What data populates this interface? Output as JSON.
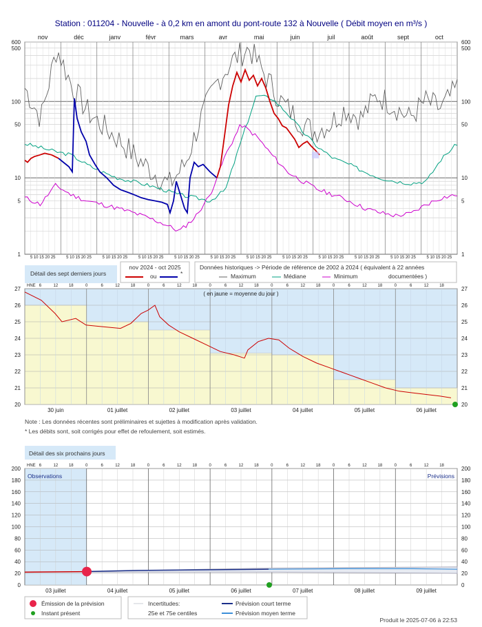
{
  "title": "Station : 011204      -   Nouvelle - à 0,2 km en amont du pont-route 132 à Nouvelle   ( Débit moyen en m³/s )",
  "colors": {
    "current": "#cc0000",
    "estimated": "#0000aa",
    "maximum": "#606060",
    "mediane": "#00a080",
    "minimum": "#cc00cc",
    "bg_blue": "#d6e9f8",
    "bg_yellow": "#f8f8d0"
  },
  "annual": {
    "months": [
      "nov",
      "déc",
      "janv",
      "févr",
      "mars",
      "avr",
      "mai",
      "juin",
      "juil",
      "août",
      "sept",
      "oct"
    ],
    "yticks": [
      "600",
      "500",
      "100",
      "50",
      "10",
      "5",
      "1"
    ],
    "day_ticks": "5 10 15 20 25"
  },
  "legend": {
    "detail_7": "Détail des sept derniers jours",
    "period": "nov 2024 - oct 2025",
    "ou": "ou",
    "star": "*",
    "hist": "Données historiques -> Période de référence  de 2002 à 2024   ( équivalent à 22 années",
    "maximum": "Maximum",
    "mediane": "Médiane",
    "minimum": "Minimum",
    "documented": "documentées )"
  },
  "week": {
    "hne": "HNE",
    "hours": [
      "6",
      "12",
      "18",
      "0",
      "6",
      "12",
      "18",
      "0",
      "6",
      "12",
      "18",
      "0",
      "6",
      "12",
      "18",
      "0",
      "6",
      "12",
      "18",
      "0",
      "6",
      "12",
      "18",
      "0",
      "6",
      "12",
      "18"
    ],
    "yticks": [
      "27",
      "26",
      "25",
      "24",
      "23",
      "22",
      "21",
      "20"
    ],
    "days": [
      "30 juin",
      "01 juillet",
      "02 juillet",
      "03 juillet",
      "04 juillet",
      "05 juillet",
      "06 juillet"
    ],
    "note_mean": "( en jaune = moyenne du jour )",
    "note1": "Note : Les données récentes sont préliminaires et sujettes à modification après validation.",
    "note2": "* Les débits sont, soit corrigés pour effet de refoulement, soit estimés."
  },
  "forecast": {
    "label": "Détail des six prochains jours",
    "hne": "HNE",
    "hours": [
      "6",
      "12",
      "18",
      "0",
      "6",
      "12",
      "18",
      "0",
      "6",
      "12",
      "18",
      "0",
      "6",
      "12",
      "18",
      "0",
      "6",
      "12",
      "18",
      "0",
      "6",
      "12",
      "18",
      "0",
      "6",
      "12",
      "18"
    ],
    "yticks": [
      "200",
      "180",
      "160",
      "140",
      "120",
      "100",
      "80",
      "60",
      "40",
      "20",
      "0"
    ],
    "days": [
      "03 juillet",
      "04 juillet",
      "05 juillet",
      "06 juillet",
      "07 juillet",
      "08 juillet",
      "09 juillet"
    ],
    "observations": "Observations",
    "previsions": "Prévisions",
    "legend_emission": "Émission de la prévision",
    "legend_present": "Instant présent",
    "legend_incert": "Incertitudes:",
    "legend_centiles": "25e et 75e centiles",
    "legend_court": "Prévision court terme",
    "legend_moyen": "Prévision moyen terme"
  },
  "footer": "Produit le 2025-07-06 à 22:53",
  "chart_data": [
    {
      "type": "line",
      "title": "Station : 011204 - Nouvelle - à 0,2 km en amont du pont-route 132 à Nouvelle ( Débit moyen en m³/s )",
      "x_axis": "months nov 2024 - oct 2025",
      "ylim": [
        1,
        600
      ],
      "yscale": "log",
      "series": [
        {
          "name": "Maximum",
          "x": [
            "nov",
            "déc",
            "janv",
            "févr",
            "mars",
            "avr",
            "mai",
            "juin",
            "juil",
            "août",
            "sept",
            "oct"
          ],
          "values": [
            120,
            300,
            90,
            20,
            12,
            60,
            450,
            160,
            45,
            60,
            70,
            90
          ]
        },
        {
          "name": "Médiane",
          "x": [
            "nov",
            "déc",
            "janv",
            "févr",
            "mars",
            "avr",
            "mai",
            "juin",
            "juil",
            "août",
            "sept",
            "oct"
          ],
          "values": [
            26,
            20,
            10,
            7,
            5,
            7,
            110,
            40,
            16,
            10,
            9,
            14
          ]
        },
        {
          "name": "Minimum",
          "x": [
            "nov",
            "déc",
            "janv",
            "févr",
            "mars",
            "avr",
            "mai",
            "juin",
            "juil",
            "août",
            "sept",
            "oct"
          ],
          "values": [
            5,
            7,
            5,
            4,
            2.3,
            4,
            50,
            12,
            7,
            5,
            3.2,
            5.5
          ]
        },
        {
          "name": "nov 2024 - oct 2025",
          "x": [
            "nov",
            "déc",
            "janv",
            "févr",
            "mars",
            "avr",
            "mai",
            "juin"
          ],
          "values": [
            18,
            15,
            8,
            5,
            5,
            14,
            190,
            40
          ]
        }
      ]
    },
    {
      "type": "line",
      "title": "Détail des sept derniers jours",
      "x_axis": [
        "30 juin",
        "01 juillet",
        "02 juillet",
        "03 juillet",
        "04 juillet",
        "05 juillet",
        "06 juillet"
      ],
      "ylim": [
        20,
        27
      ],
      "series": [
        {
          "name": "débit",
          "values": [
            26.8,
            25.0,
            25.6,
            24.4,
            23.0,
            24.0,
            22.2,
            21.0,
            20.5
          ]
        },
        {
          "name": "moyenne du jour",
          "values": [
            26.0,
            25.0,
            24.5,
            23.1,
            23.0,
            21.5,
            21.0
          ]
        }
      ]
    },
    {
      "type": "line",
      "title": "Détail des six prochains jours",
      "x_axis": [
        "03 juillet",
        "04 juillet",
        "05 juillet",
        "06 juillet",
        "07 juillet",
        "08 juillet",
        "09 juillet"
      ],
      "ylim": [
        0,
        200
      ],
      "series": [
        {
          "name": "Observations",
          "values": [
            22,
            22,
            22
          ]
        },
        {
          "name": "Prévision court terme",
          "values": [
            22,
            24,
            26,
            27
          ]
        },
        {
          "name": "Prévision moyen terme",
          "values": [
            27,
            28,
            28,
            29
          ]
        },
        {
          "name": "Incertitudes: 25e et 75e centiles",
          "values": [
            20,
            30
          ]
        }
      ]
    }
  ]
}
